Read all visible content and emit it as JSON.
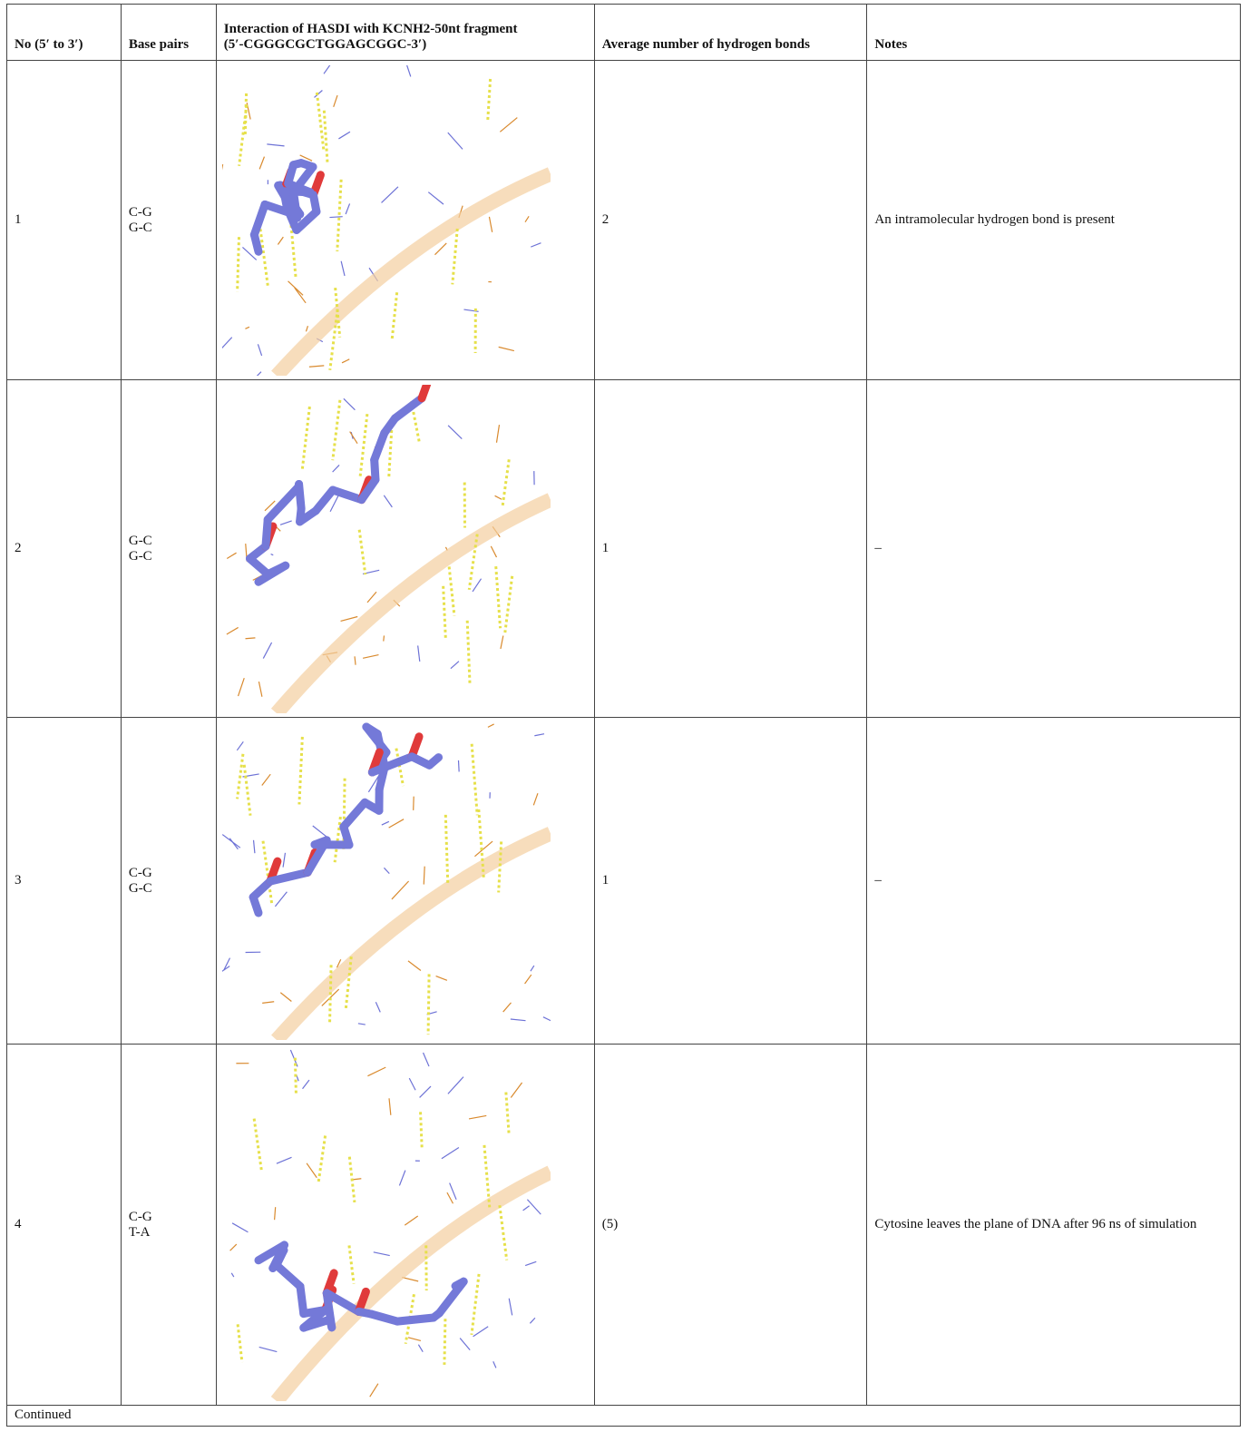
{
  "table": {
    "header": [
      "No (5′ to 3′)",
      "Base pairs",
      [
        "Interaction of HASDI with KCNH2-50nt fragment",
        "(5′-CGGGCGCTGGAGCGGC-3′)"
      ],
      "Average number of hydrogen bonds",
      "Notes"
    ],
    "rows": [
      {
        "no": 1,
        "base_pairs": [
          "C-G",
          "G-C"
        ],
        "hbonds": 2,
        "notes": "An intramolecular hydrogen bond is present"
      },
      {
        "no": 2,
        "base_pairs": [
          "G-C",
          "G-C"
        ],
        "hbonds": 1,
        "notes": "–"
      },
      {
        "no": 3,
        "base_pairs": [
          "C-G",
          "G-C"
        ],
        "hbonds": 1,
        "notes": "–"
      },
      {
        "no": 4,
        "base_pairs": [
          "C-G",
          "T-A"
        ],
        "hbonds": "(5)",
        "notes": "Cytosine leaves the plane of DNA after 96 ns of simulation"
      }
    ]
  },
  "footer": "Continued"
}
